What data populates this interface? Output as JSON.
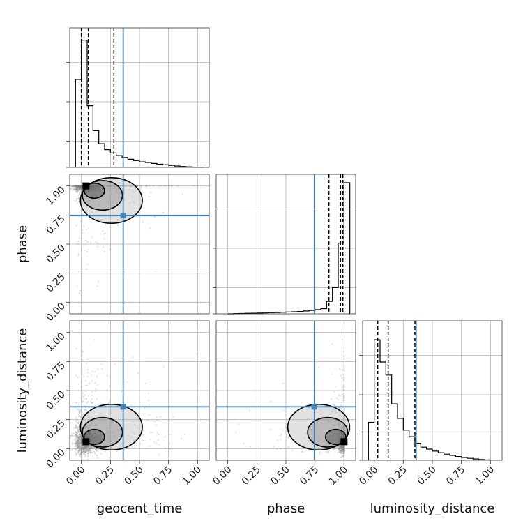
{
  "chart_data": {
    "type": "corner",
    "parameters": [
      "geocent_time",
      "phase",
      "luminosity_distance"
    ],
    "axis_range": [
      -0.1,
      1.1
    ],
    "ticks": [
      0.0,
      0.25,
      0.5,
      0.75,
      1.0
    ],
    "tick_labels": [
      "0.00",
      "0.25",
      "0.50",
      "0.75",
      "1.00"
    ],
    "truths": {
      "geocent_time": 0.36,
      "phase": 0.745,
      "luminosity_distance": 0.36
    },
    "colors": {
      "truth": "#4682b4",
      "hist": "#000000",
      "scatter": "#808080",
      "grid": "#b0b0b0"
    },
    "grid": true,
    "histograms": [
      {
        "parameter": "geocent_time",
        "bin_edges": [
          -0.05,
          0.0,
          0.05,
          0.1,
          0.15,
          0.2,
          0.25,
          0.3,
          0.35,
          0.4,
          0.45,
          0.5,
          0.55,
          0.6,
          0.65,
          0.7,
          0.75,
          0.8,
          0.85,
          0.9,
          0.95,
          1.0,
          1.05
        ],
        "counts": [
          0.67,
          0.97,
          0.47,
          0.28,
          0.18,
          0.135,
          0.11,
          0.09,
          0.075,
          0.062,
          0.052,
          0.042,
          0.037,
          0.03,
          0.024,
          0.02,
          0.015,
          0.01,
          0.007,
          0.004,
          0.002,
          0.001
        ],
        "quantiles": [
          0.0,
          0.06,
          0.28
        ]
      },
      {
        "parameter": "phase",
        "bin_edges": [
          0.0,
          0.05,
          0.1,
          0.15,
          0.2,
          0.25,
          0.3,
          0.35,
          0.4,
          0.45,
          0.5,
          0.55,
          0.6,
          0.65,
          0.7,
          0.75,
          0.8,
          0.85,
          0.9,
          0.95,
          1.0,
          1.05
        ],
        "counts": [
          0.0,
          0.002,
          0.003,
          0.004,
          0.005,
          0.006,
          0.007,
          0.009,
          0.01,
          0.012,
          0.014,
          0.016,
          0.018,
          0.022,
          0.026,
          0.032,
          0.04,
          0.095,
          0.2,
          0.54,
          1.0
        ],
        "quantiles": [
          0.87,
          0.97,
          0.99
        ]
      },
      {
        "parameter": "luminosity_distance",
        "bin_edges": [
          -0.05,
          0.0,
          0.05,
          0.1,
          0.15,
          0.2,
          0.25,
          0.3,
          0.35,
          0.4,
          0.45,
          0.5,
          0.55,
          0.6,
          0.65,
          0.7,
          0.75,
          0.8,
          0.85,
          0.9,
          0.95,
          1.0
        ],
        "counts": [
          0.29,
          0.92,
          0.75,
          0.65,
          0.43,
          0.32,
          0.23,
          0.18,
          0.13,
          0.1,
          0.085,
          0.07,
          0.058,
          0.047,
          0.037,
          0.029,
          0.021,
          0.015,
          0.01,
          0.006,
          0.003
        ],
        "quantiles": [
          0.03,
          0.12,
          0.35
        ]
      }
    ],
    "density_panels": [
      {
        "x": "geocent_time",
        "y": "phase",
        "mode": [
          0.04,
          1.0
        ]
      },
      {
        "x": "geocent_time",
        "y": "luminosity_distance",
        "mode": [
          0.04,
          0.06
        ]
      },
      {
        "x": "phase",
        "y": "luminosity_distance",
        "mode": [
          1.0,
          0.06
        ]
      }
    ]
  }
}
